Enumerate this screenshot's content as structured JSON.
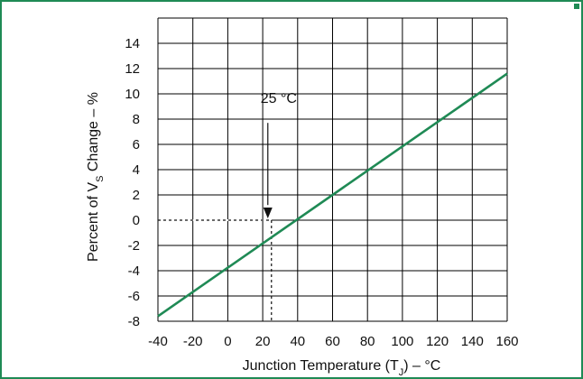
{
  "chart_data": {
    "type": "line",
    "xlabel": "Junction Temperature (T_J) – °C",
    "xlabel_parts": {
      "pre": "Junction Temperature (T",
      "sub": "J",
      "post": ") – °C"
    },
    "ylabel": "Percent of V_S Change – %",
    "ylabel_parts": {
      "pre": "Percent of V",
      "sub": "S",
      "post": " Change – %"
    },
    "xlim": [
      -40,
      160
    ],
    "ylim": [
      -8,
      16
    ],
    "x_ticks": [
      -40,
      -20,
      0,
      20,
      40,
      60,
      80,
      100,
      120,
      140,
      160
    ],
    "y_ticks": [
      -8,
      -6,
      -4,
      -2,
      0,
      2,
      4,
      6,
      8,
      10,
      12,
      14
    ],
    "grid": true,
    "series": [
      {
        "x": [
          -40,
          160
        ],
        "y": [
          -7.6,
          11.6
        ],
        "color": "#1f8a55"
      }
    ],
    "annotation": {
      "label": "25 °C",
      "x": 25,
      "y": 0
    },
    "colors": {
      "frame": "#1f8a55",
      "line": "#1f8a55",
      "grid": "#000000"
    }
  }
}
